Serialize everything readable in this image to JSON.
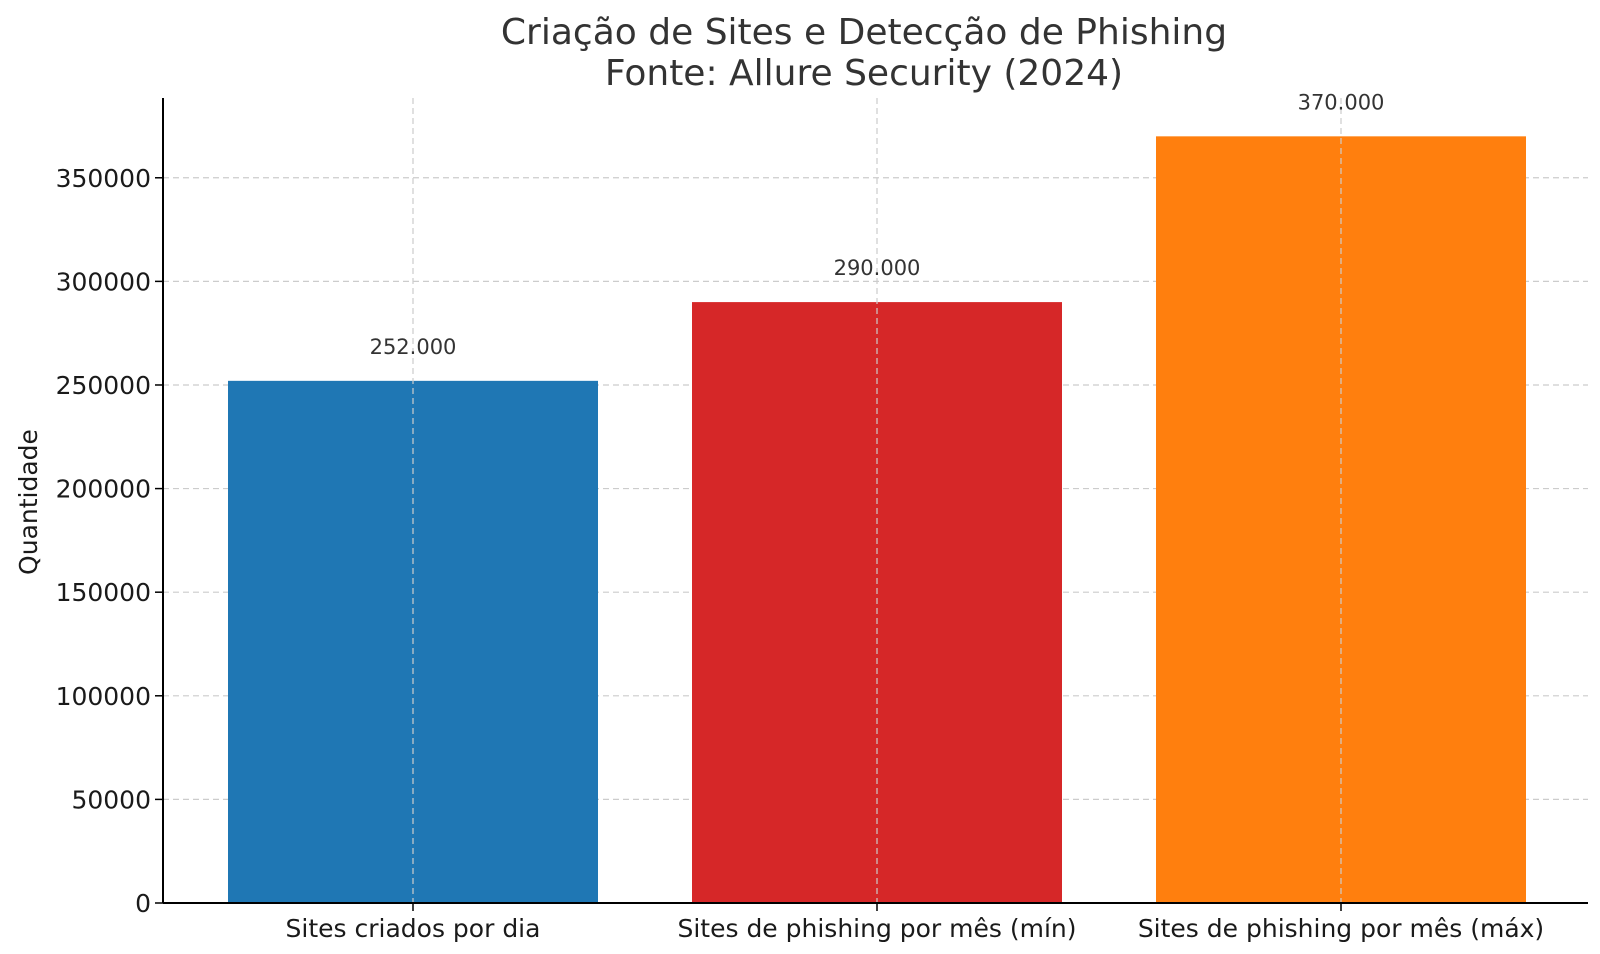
{
  "chart_data": {
    "type": "bar",
    "title": "Criação de Sites e Detecção de Phishing",
    "subtitle": "Fonte: Allure Security (2024)",
    "xlabel": "",
    "ylabel": "Quantidade",
    "categories": [
      "Sites criados por dia",
      "Sites de phishing por mês (mín)",
      "Sites de phishing por mês (máx)"
    ],
    "values": [
      252000,
      290000,
      370000
    ],
    "value_labels": [
      "252.000",
      "290.000",
      "370.000"
    ],
    "colors": [
      "#1f77b4",
      "#d62728",
      "#ff7f0e"
    ],
    "yticks": [
      0,
      50000,
      100000,
      150000,
      200000,
      250000,
      300000,
      350000
    ],
    "ytick_labels": [
      "0",
      "50000",
      "100000",
      "150000",
      "200000",
      "250000",
      "300000",
      "350000"
    ],
    "ylim": [
      0,
      388500
    ],
    "grid": true,
    "legend": "none"
  }
}
